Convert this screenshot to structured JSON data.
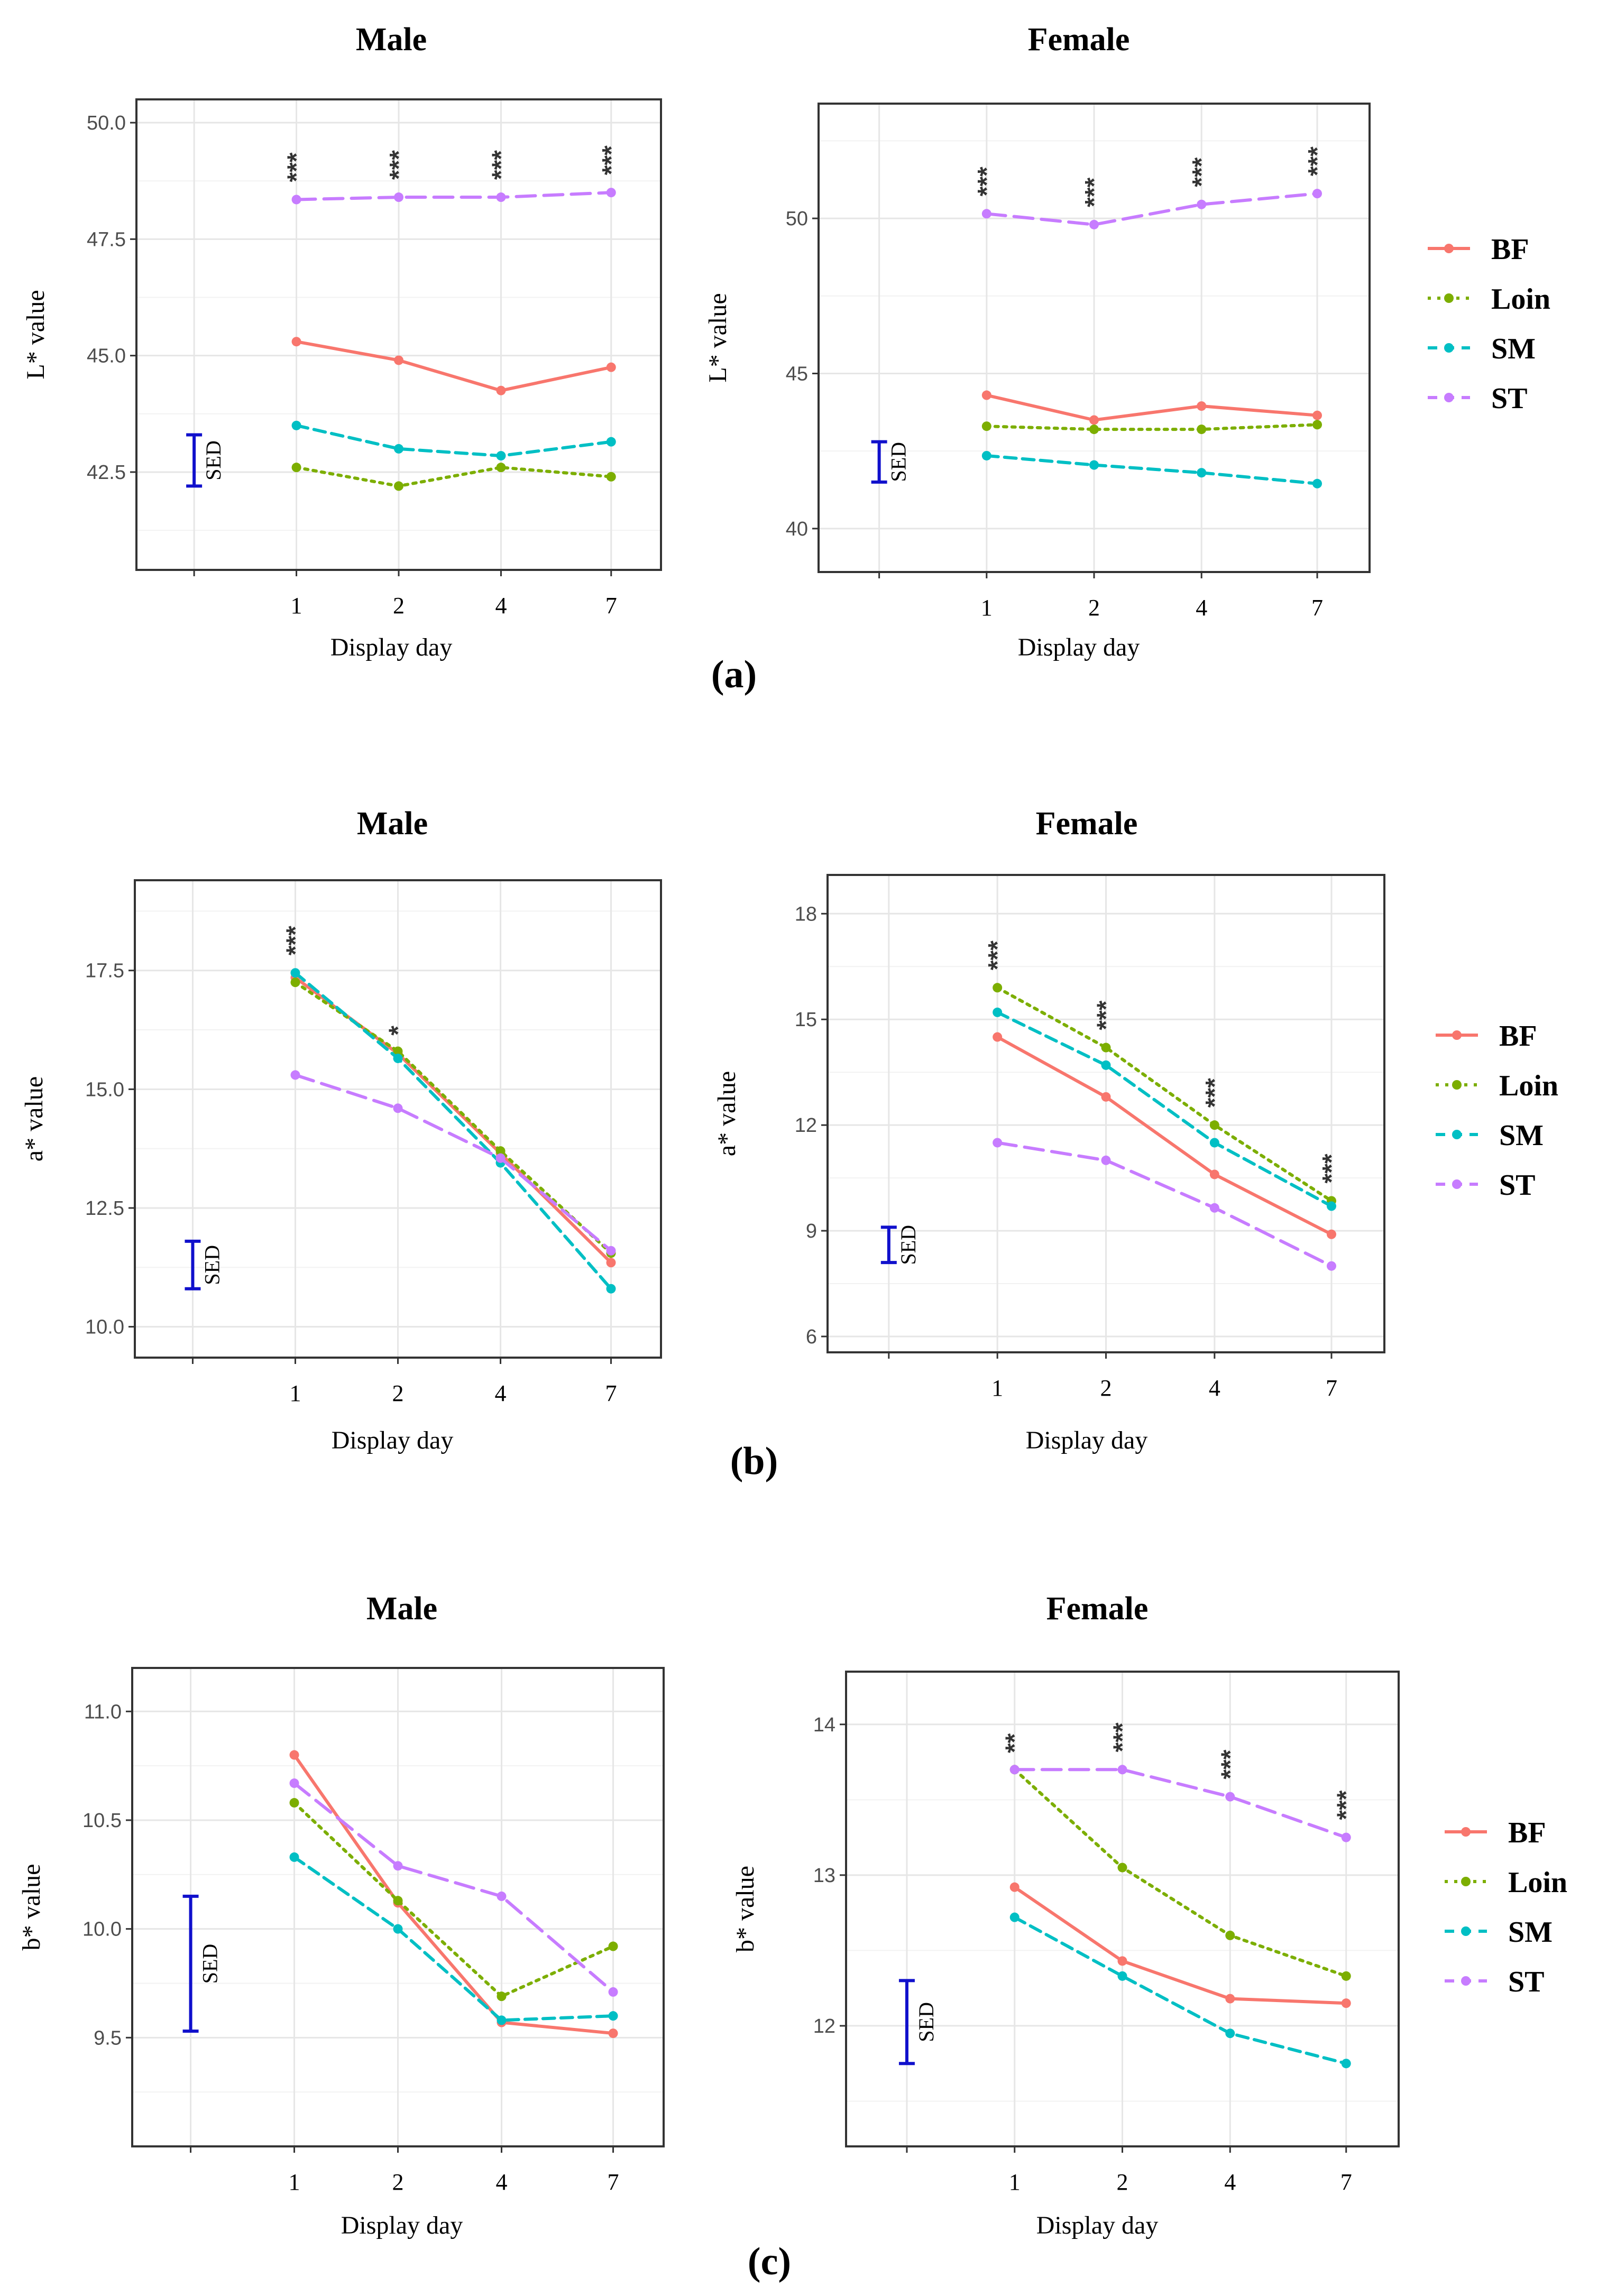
{
  "figure": {
    "panel_labels": [
      "(a)",
      "(b)",
      "(c)"
    ]
  },
  "colors": {
    "BF": "#F8766D",
    "Loin": "#7CAE00",
    "SM": "#00BFC4",
    "ST": "#C77CFF",
    "sed": "#1010CC"
  },
  "legend": {
    "entries": [
      {
        "name": "BF",
        "dash": "solid"
      },
      {
        "name": "Loin",
        "dash": "dotted"
      },
      {
        "name": "SM",
        "dash": "dashed"
      },
      {
        "name": "ST",
        "dash": "longdash"
      }
    ]
  },
  "chart_data": [
    {
      "type": "line",
      "panel": "(a)",
      "title": "Male",
      "xlabel": "Display day",
      "ylabel": "L* value",
      "categories": [
        "1",
        "2",
        "4",
        "7"
      ],
      "ylim": [
        40.4,
        50.5
      ],
      "yticks": [
        "42.5",
        "45.0",
        "47.5",
        "50.0"
      ],
      "sed_label": "SED",
      "sed_range": [
        42.2,
        43.3
      ],
      "significance": [
        "***",
        "***",
        "***",
        "***"
      ],
      "series": [
        {
          "name": "BF",
          "values": [
            45.3,
            44.9,
            44.25,
            44.75
          ]
        },
        {
          "name": "Loin",
          "values": [
            42.6,
            42.2,
            42.6,
            42.4
          ]
        },
        {
          "name": "SM",
          "values": [
            43.5,
            43.0,
            42.85,
            43.15
          ]
        },
        {
          "name": "ST",
          "values": [
            48.35,
            48.4,
            48.4,
            48.5
          ]
        }
      ]
    },
    {
      "type": "line",
      "panel": "(a)",
      "title": "Female",
      "xlabel": "Display day",
      "ylabel": "L* value",
      "categories": [
        "1",
        "2",
        "4",
        "7"
      ],
      "ylim": [
        38.6,
        53.7
      ],
      "yticks": [
        "40",
        "45",
        "50"
      ],
      "sed_label": "SED",
      "sed_range": [
        41.5,
        42.8
      ],
      "significance": [
        "***",
        "***",
        "***",
        "***"
      ],
      "series": [
        {
          "name": "BF",
          "values": [
            44.3,
            43.5,
            43.95,
            43.65
          ]
        },
        {
          "name": "Loin",
          "values": [
            43.3,
            43.2,
            43.2,
            43.35
          ]
        },
        {
          "name": "SM",
          "values": [
            42.35,
            42.05,
            41.8,
            41.45
          ]
        },
        {
          "name": "ST",
          "values": [
            50.15,
            49.8,
            50.45,
            50.8
          ]
        }
      ]
    },
    {
      "type": "line",
      "panel": "(b)",
      "title": "Male",
      "xlabel": "Display day",
      "ylabel": "a* value",
      "categories": [
        "1",
        "2",
        "4",
        "7"
      ],
      "ylim": [
        9.35,
        19.4
      ],
      "yticks": [
        "10.0",
        "12.5",
        "15.0",
        "17.5"
      ],
      "sed_label": "SED",
      "sed_range": [
        10.8,
        11.8
      ],
      "significance": [
        "***",
        "*",
        "",
        ""
      ],
      "series": [
        {
          "name": "BF",
          "values": [
            17.35,
            15.75,
            13.65,
            11.35
          ]
        },
        {
          "name": "Loin",
          "values": [
            17.25,
            15.8,
            13.7,
            11.55
          ]
        },
        {
          "name": "SM",
          "values": [
            17.45,
            15.65,
            13.45,
            10.8
          ]
        },
        {
          "name": "ST",
          "values": [
            15.3,
            14.6,
            13.55,
            11.6
          ]
        }
      ]
    },
    {
      "type": "line",
      "panel": "(b)",
      "title": "Female",
      "xlabel": "Display day",
      "ylabel": "a* value",
      "categories": [
        "1",
        "2",
        "4",
        "7"
      ],
      "ylim": [
        5.55,
        19.1
      ],
      "yticks": [
        "6",
        "9",
        "12",
        "15",
        "18"
      ],
      "sed_label": "SED",
      "sed_range": [
        8.1,
        9.1
      ],
      "significance": [
        "***",
        "***",
        "***",
        "***"
      ],
      "series": [
        {
          "name": "BF",
          "values": [
            14.5,
            12.8,
            10.6,
            8.9
          ]
        },
        {
          "name": "Loin",
          "values": [
            15.9,
            14.2,
            12.0,
            9.85
          ]
        },
        {
          "name": "SM",
          "values": [
            15.2,
            13.7,
            11.5,
            9.7
          ]
        },
        {
          "name": "ST",
          "values": [
            11.5,
            11.0,
            9.65,
            8.0
          ]
        }
      ]
    },
    {
      "type": "line",
      "panel": "(c)",
      "title": "Male",
      "xlabel": "Display day",
      "ylabel": "b* value",
      "categories": [
        "1",
        "2",
        "4",
        "7"
      ],
      "ylim": [
        9.0,
        11.2
      ],
      "yticks": [
        "9.5",
        "10.0",
        "10.5",
        "11.0"
      ],
      "sed_label": "SED",
      "sed_range": [
        9.53,
        10.15
      ],
      "significance": [
        "",
        "",
        "",
        ""
      ],
      "series": [
        {
          "name": "BF",
          "values": [
            10.8,
            10.12,
            9.57,
            9.52
          ]
        },
        {
          "name": "Loin",
          "values": [
            10.58,
            10.13,
            9.69,
            9.92
          ]
        },
        {
          "name": "SM",
          "values": [
            10.33,
            10.0,
            9.58,
            9.6
          ]
        },
        {
          "name": "ST",
          "values": [
            10.67,
            10.29,
            10.15,
            9.71
          ]
        }
      ]
    },
    {
      "type": "line",
      "panel": "(c)",
      "title": "Female",
      "xlabel": "Display day",
      "ylabel": "b* value",
      "categories": [
        "1",
        "2",
        "4",
        "7"
      ],
      "ylim": [
        11.2,
        14.35
      ],
      "yticks": [
        "12",
        "13",
        "14"
      ],
      "sed_label": "SED",
      "sed_range": [
        11.75,
        12.3
      ],
      "significance": [
        "**",
        "***",
        "***",
        "***"
      ],
      "series": [
        {
          "name": "BF",
          "values": [
            12.92,
            12.43,
            12.18,
            12.15
          ]
        },
        {
          "name": "Loin",
          "values": [
            13.7,
            13.05,
            12.6,
            12.33
          ]
        },
        {
          "name": "SM",
          "values": [
            12.72,
            12.33,
            11.95,
            11.75
          ]
        },
        {
          "name": "ST",
          "values": [
            13.7,
            13.7,
            13.52,
            13.25
          ]
        }
      ]
    }
  ]
}
